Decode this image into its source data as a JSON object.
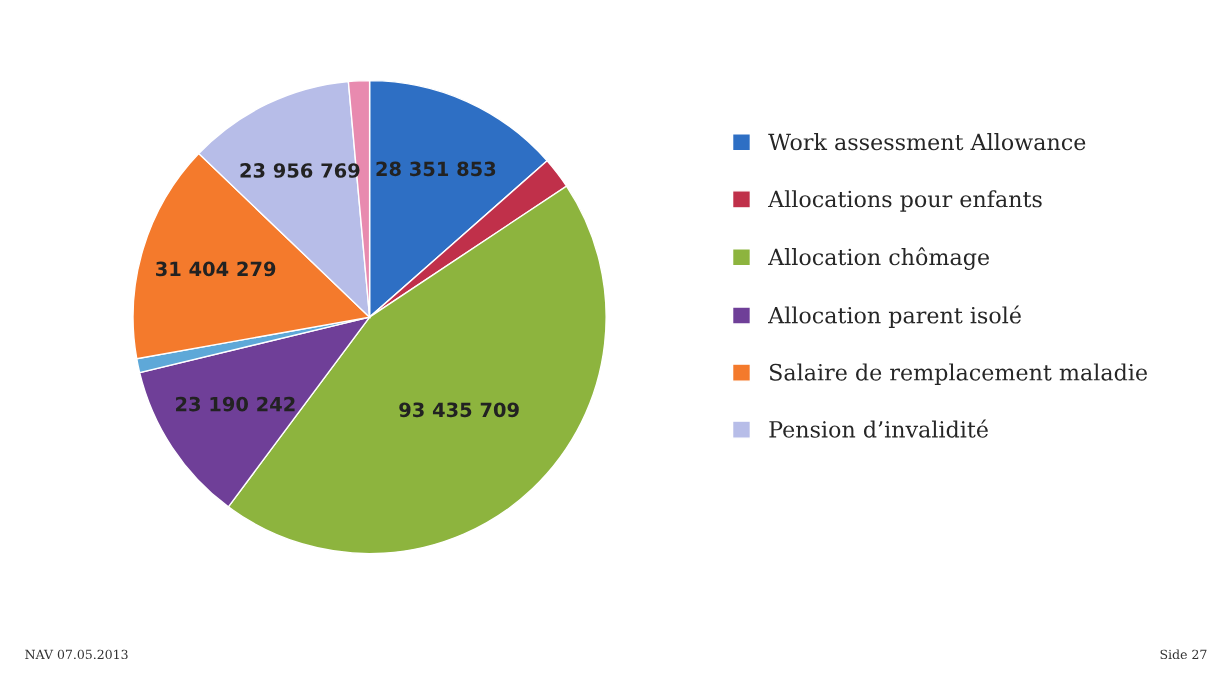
{
  "chart_data": {
    "type": "pie",
    "categories": [
      "Work assessment Allowance",
      "Allocations pour enfants",
      "Allocation chômage",
      "Allocation parent isolé",
      null,
      "Salaire de remplacement maladie",
      "Pension d’invalidité",
      null
    ],
    "values": [
      28351853,
      4500000,
      93435709,
      23190242,
      2000000,
      31404279,
      23956769,
      3000000
    ],
    "value_labels": [
      "28 351 853",
      null,
      "93 435 709",
      "23 190 242",
      null,
      "31 404 279",
      "23 956 769",
      null
    ],
    "colors": [
      "#2e6fc4",
      "#c0304a",
      "#8db43e",
      "#6f3f98",
      "#5ea8d8",
      "#f47a2c",
      "#b7bde8",
      "#e88aaf"
    ],
    "legend": "right",
    "annotations": [
      "NAV 07.05.2013",
      "Side 27"
    ]
  }
}
